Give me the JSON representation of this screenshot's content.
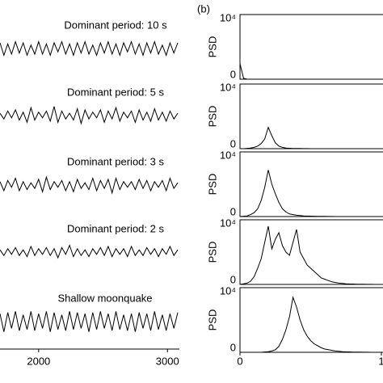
{
  "chart_data": [
    {
      "type": "wave",
      "color": "#000000",
      "x": [
        1700,
        1730,
        1760,
        1790,
        1820,
        1850,
        1880,
        1910,
        1940,
        1970,
        2000,
        2030,
        2060,
        2090,
        2120,
        2150,
        2180,
        2210,
        2240,
        2270,
        2300,
        2330,
        2360,
        2390,
        2420,
        2450,
        2480,
        2510,
        2540,
        2570,
        2600,
        2630,
        2660,
        2690,
        2720,
        2750,
        2780,
        2810,
        2840,
        2870,
        2900,
        2930,
        2960,
        2990,
        3020,
        3050,
        3080
      ],
      "xlim": [
        1700,
        3080
      ],
      "xticks": [
        2000,
        3000
      ],
      "ylim": [
        -1,
        1
      ],
      "series": [
        {
          "name": "Dominant period: 10 s",
          "values": [
            0.5,
            -0.6,
            0.4,
            -0.5,
            0.6,
            -0.4,
            0.5,
            -0.6,
            0.3,
            -0.5,
            0.6,
            -0.5,
            0.4,
            -0.6,
            0.5,
            -0.3,
            0.6,
            -0.5,
            0.4,
            -0.6,
            0.5,
            -0.4,
            0.6,
            -0.5,
            0.3,
            -0.6,
            0.5,
            -0.4,
            0.6,
            -0.5,
            0.4,
            -0.6,
            0.5,
            -0.3,
            0.6,
            -0.5,
            0.4,
            -0.6,
            0.5,
            -0.4,
            0.6,
            -0.5,
            0.3,
            -0.6,
            0.5,
            -0.4,
            0.5
          ]
        },
        {
          "name": "Dominant period:  5 s",
          "values": [
            0.2,
            -0.3,
            0.4,
            -0.2,
            0.5,
            -0.4,
            0.3,
            -0.6,
            0.7,
            -0.4,
            0.3,
            -0.2,
            0.4,
            -0.5,
            0.8,
            -0.6,
            0.4,
            -0.3,
            0.2,
            -0.4,
            0.6,
            -0.7,
            0.5,
            -0.3,
            0.3,
            -0.2,
            0.5,
            -0.6,
            0.4,
            -0.3,
            0.7,
            -0.5,
            0.3,
            -0.2,
            0.4,
            -0.6,
            0.5,
            -0.4,
            0.3,
            -0.5,
            0.6,
            -0.4,
            0.3,
            -0.5,
            0.4,
            -0.3,
            0.2
          ]
        },
        {
          "name": "Dominant period:  3 s",
          "values": [
            0.3,
            -0.5,
            0.4,
            -0.2,
            0.6,
            -0.5,
            0.3,
            -0.4,
            0.2,
            -0.3,
            0.5,
            -0.6,
            0.7,
            -0.4,
            0.3,
            -0.2,
            0.4,
            -0.5,
            0.3,
            -0.6,
            0.5,
            -0.3,
            0.2,
            -0.4,
            0.6,
            -0.5,
            0.4,
            -0.3,
            0.5,
            -0.7,
            0.6,
            -0.4,
            0.3,
            -0.2,
            0.3,
            -0.4,
            0.5,
            -0.3,
            0.4,
            -0.5,
            0.3,
            -0.2,
            0.4,
            -0.5,
            0.6,
            -0.3,
            0.2
          ]
        },
        {
          "name": "Dominant period:  2 s",
          "values": [
            0.2,
            -0.3,
            0.3,
            -0.2,
            0.4,
            -0.3,
            0.2,
            -0.4,
            0.5,
            -0.3,
            0.3,
            -0.2,
            0.4,
            -0.3,
            0.3,
            -0.5,
            0.4,
            -0.2,
            0.6,
            -0.4,
            0.3,
            -0.3,
            0.2,
            -0.4,
            0.3,
            -0.2,
            0.4,
            -0.3,
            0.5,
            -0.4,
            0.3,
            -0.2,
            0.3,
            -0.4,
            0.5,
            -0.3,
            0.2,
            -0.3,
            0.4,
            -0.2,
            0.3,
            -0.4,
            0.3,
            -0.2,
            0.5,
            -0.3,
            0.2
          ]
        },
        {
          "name": "Shallow moonquake",
          "values": [
            0.7,
            -0.9,
            0.8,
            -0.6,
            0.9,
            -0.8,
            0.6,
            -0.7,
            0.9,
            -0.8,
            0.7,
            -0.6,
            0.9,
            -0.9,
            0.8,
            -0.7,
            0.6,
            -0.8,
            0.9,
            -0.7,
            0.8,
            -0.6,
            0.7,
            -0.9,
            0.8,
            -0.7,
            0.9,
            -0.6,
            0.7,
            -0.8,
            0.9,
            -0.7,
            0.6,
            -0.8,
            0.7,
            -0.9,
            0.8,
            -0.6,
            0.7,
            -0.8,
            0.9,
            -0.7,
            0.6,
            -0.8,
            0.7,
            -0.6,
            0.8
          ]
        }
      ]
    },
    {
      "type": "psd",
      "title": "(b)",
      "ylabel": "PSD",
      "color": "#000000",
      "x": [
        0,
        0.025,
        0.05,
        0.075,
        0.1,
        0.125,
        0.15,
        0.175,
        0.2,
        0.225,
        0.25,
        0.275,
        0.3,
        0.325,
        0.35,
        0.375,
        0.4,
        0.425,
        0.45,
        0.475,
        0.5,
        0.525,
        0.55,
        0.575,
        0.6,
        0.625,
        0.65,
        0.675,
        0.7,
        0.725,
        0.75,
        0.775,
        0.8,
        0.825,
        0.85,
        0.875,
        0.9,
        0.925,
        0.95,
        0.975,
        1
      ],
      "xlim": [
        0,
        1
      ],
      "xticks": [
        0,
        1
      ],
      "ylim": [
        0,
        10000
      ],
      "yticks": [
        0,
        {
          "value": 10000,
          "label": "10⁴"
        }
      ],
      "series": [
        {
          "values": [
            2400,
            150,
            0,
            0,
            0,
            0,
            0,
            0,
            0,
            0,
            0,
            0,
            0,
            0,
            0,
            0,
            0,
            0,
            0,
            0,
            0,
            0,
            0,
            0,
            0,
            0,
            0,
            0,
            0,
            0,
            0,
            0,
            0,
            0,
            0,
            0,
            0,
            0,
            0,
            0,
            0
          ]
        },
        {
          "values": [
            0,
            0,
            50,
            100,
            200,
            400,
            800,
            1500,
            3300,
            2000,
            900,
            400,
            200,
            100,
            60,
            40,
            30,
            20,
            10,
            10,
            0,
            0,
            0,
            0,
            0,
            0,
            0,
            0,
            0,
            0,
            0,
            0,
            0,
            0,
            0,
            0,
            0,
            0,
            0,
            0,
            0
          ]
        },
        {
          "values": [
            0,
            50,
            100,
            300,
            600,
            1200,
            2500,
            4500,
            7200,
            5000,
            3500,
            2200,
            1200,
            700,
            400,
            300,
            200,
            150,
            100,
            80,
            60,
            50,
            40,
            30,
            20,
            10,
            10,
            0,
            0,
            0,
            0,
            0,
            0,
            0,
            0,
            0,
            0,
            0,
            0,
            0,
            0
          ]
        },
        {
          "values": [
            0,
            100,
            200,
            500,
            1200,
            2500,
            4000,
            6500,
            9000,
            5500,
            7000,
            8000,
            6000,
            5000,
            4500,
            6500,
            8500,
            5000,
            4000,
            3000,
            2500,
            2000,
            1500,
            1000,
            800,
            600,
            400,
            300,
            200,
            150,
            100,
            80,
            60,
            40,
            30,
            20,
            10,
            10,
            0,
            0,
            0
          ]
        },
        {
          "values": [
            0,
            0,
            0,
            0,
            0,
            0,
            0,
            50,
            100,
            200,
            400,
            900,
            2000,
            3500,
            5500,
            8500,
            7000,
            5000,
            3500,
            2500,
            1800,
            1300,
            1000,
            700,
            500,
            400,
            300,
            200,
            150,
            100,
            80,
            60,
            40,
            30,
            20,
            10,
            10,
            0,
            0,
            0,
            0
          ]
        }
      ]
    }
  ]
}
